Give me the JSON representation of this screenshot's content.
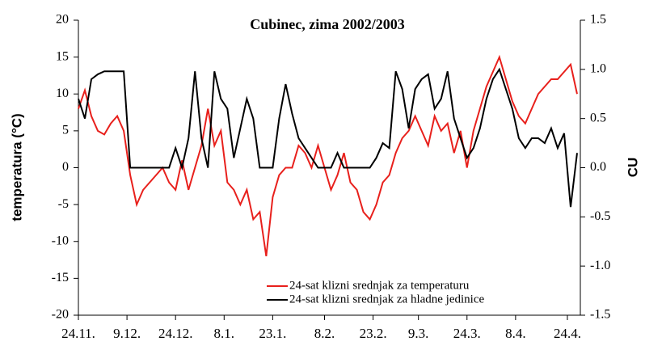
{
  "chart_data": {
    "type": "line",
    "title": "Cubinec, zima 2002/2003",
    "y_label": "temperatura (°C)",
    "y2_label": "CU",
    "x": [
      0,
      2,
      4,
      6,
      8,
      10,
      12,
      14,
      16,
      18,
      20,
      22,
      24,
      26,
      28,
      30,
      32,
      34,
      36,
      38,
      40,
      42,
      44,
      46,
      48,
      50,
      52,
      54,
      56,
      58,
      60,
      62,
      64,
      66,
      68,
      70,
      72,
      74,
      76,
      78,
      80,
      82,
      84,
      86,
      88,
      90,
      92,
      94,
      96,
      98,
      100,
      102,
      104,
      106,
      108,
      110,
      112,
      114,
      116,
      118,
      120,
      122,
      124,
      126,
      128,
      130,
      132,
      134,
      136,
      138,
      140,
      142,
      144,
      146,
      148,
      150,
      152,
      154
    ],
    "xlim": [
      0,
      155
    ],
    "xticks": [
      {
        "value": 0,
        "label": "24.11."
      },
      {
        "value": 15,
        "label": "9.12."
      },
      {
        "value": 30,
        "label": "24.12."
      },
      {
        "value": 45,
        "label": "8.1."
      },
      {
        "value": 60,
        "label": "23.1."
      },
      {
        "value": 76,
        "label": "8.2."
      },
      {
        "value": 91,
        "label": "23.2."
      },
      {
        "value": 105,
        "label": "9.3."
      },
      {
        "value": 120,
        "label": "24.3."
      },
      {
        "value": 135,
        "label": "8.4."
      },
      {
        "value": 151,
        "label": "24.4."
      }
    ],
    "ylim": [
      -20,
      20
    ],
    "yticks": [
      -20,
      -15,
      -10,
      -5,
      0,
      5,
      10,
      15,
      20
    ],
    "y2lim": [
      -1.5,
      1.5
    ],
    "y2ticks": [
      -1.5,
      {
        "value": -1.0,
        "label": "-1.0"
      },
      -0.5,
      {
        "value": 0,
        "label": "0.0"
      },
      0.5,
      {
        "value": 1.0,
        "label": "1.0"
      },
      1.5
    ],
    "series": [
      {
        "name": "24-sat klizni srednjak za temperaturu",
        "color": "#e8201c",
        "axis": "y",
        "values": [
          8,
          10.5,
          7,
          5,
          4.5,
          6,
          7,
          5,
          -1,
          -5,
          -3,
          -2,
          -1,
          0,
          -2,
          -3,
          1,
          -3,
          0,
          3,
          8,
          3,
          5,
          -2,
          -3,
          -5,
          -3,
          -7,
          -6,
          -12,
          -4,
          -1,
          0,
          0,
          3,
          2,
          0,
          3,
          0,
          -3,
          -1,
          2,
          -2,
          -3,
          -6,
          -7,
          -5,
          -2,
          -1,
          2,
          4,
          5,
          7,
          5,
          3,
          7,
          5,
          6,
          2,
          5,
          0,
          5,
          8,
          11,
          13,
          15,
          12,
          9,
          7,
          6,
          8,
          10,
          11,
          12,
          12,
          13,
          14,
          10
        ]
      },
      {
        "name": "24-sat klizni srednjak za hladne jedinice",
        "color": "#000000",
        "axis": "y2",
        "values": [
          0.7,
          0.5,
          0.9,
          0.95,
          0.98,
          0.98,
          0.98,
          0.98,
          0,
          0,
          0,
          0,
          0,
          0,
          0,
          0.2,
          0,
          0.3,
          0.98,
          0.3,
          0,
          0.98,
          0.7,
          0.6,
          0.1,
          0.4,
          0.7,
          0.5,
          0,
          0,
          0,
          0.5,
          0.85,
          0.55,
          0.3,
          0.2,
          0.1,
          0,
          0,
          0,
          0.15,
          0,
          0,
          0,
          0,
          0,
          0.1,
          0.25,
          0.2,
          0.98,
          0.8,
          0.4,
          0.8,
          0.9,
          0.95,
          0.6,
          0.7,
          0.98,
          0.5,
          0.3,
          0.1,
          0.2,
          0.4,
          0.7,
          0.9,
          1.0,
          0.8,
          0.6,
          0.3,
          0.2,
          0.3,
          0.3,
          0.25,
          0.4,
          0.2,
          0.35,
          -0.4,
          0.15
        ]
      }
    ]
  }
}
